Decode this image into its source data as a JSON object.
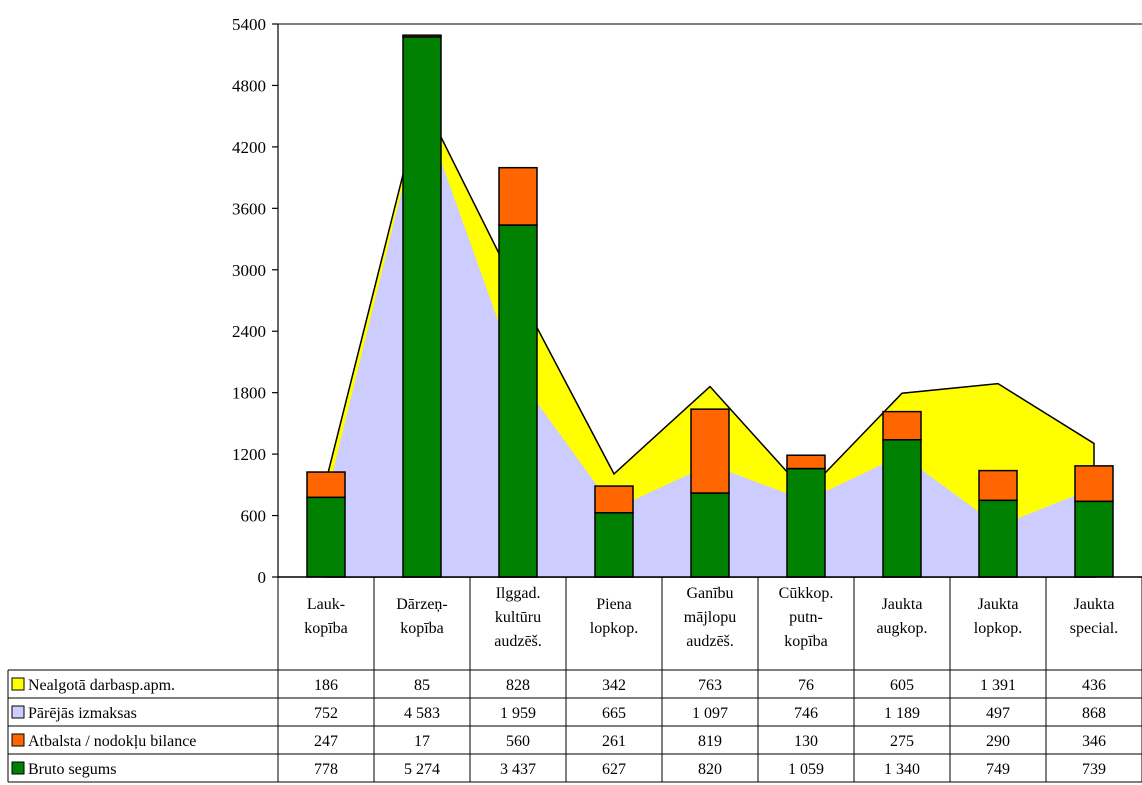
{
  "chart_data": {
    "type": "bar",
    "subtype": "stacked bar with stacked area and data table",
    "categories": [
      [
        "Lauk-",
        "kopība"
      ],
      [
        "Dārzeņ-",
        "kopība"
      ],
      [
        "Ilggad.",
        "kultūru",
        "audzēš."
      ],
      [
        "Piena",
        "lopkop."
      ],
      [
        "Ganību",
        "mājlopu",
        "audzēš."
      ],
      [
        "Cūkkop.",
        "putn-",
        "kopība"
      ],
      [
        "Jaukta",
        "augkop."
      ],
      [
        "Jaukta",
        "lopkop."
      ],
      [
        "Jaukta",
        "special."
      ]
    ],
    "ylim": [
      0,
      5400
    ],
    "yticks": [
      0,
      600,
      1200,
      1800,
      2400,
      3000,
      3600,
      4200,
      4800,
      5400
    ],
    "series": [
      {
        "name": "Nealgotā darbasp.apm.",
        "kind": "area",
        "color": "#ffff00",
        "values": [
          186,
          85,
          828,
          342,
          763,
          76,
          605,
          1391,
          436
        ],
        "labels": [
          "186",
          "85",
          "828",
          "342",
          "763",
          "76",
          "605",
          "1 391",
          "436"
        ]
      },
      {
        "name": "Pārējās izmaksas",
        "kind": "area",
        "color": "#ccccff",
        "values": [
          752,
          4583,
          1959,
          665,
          1097,
          746,
          1189,
          497,
          868
        ],
        "labels": [
          "752",
          "4 583",
          "1 959",
          "665",
          "1 097",
          "746",
          "1 189",
          "497",
          "868"
        ]
      },
      {
        "name": "Atbalsta / nodokļu bilance",
        "kind": "bar",
        "color": "#ff6600",
        "values": [
          247,
          17,
          560,
          261,
          819,
          130,
          275,
          290,
          346
        ],
        "labels": [
          "247",
          "17",
          "560",
          "261",
          "819",
          "130",
          "275",
          "290",
          "346"
        ]
      },
      {
        "name": "Bruto segums",
        "kind": "bar",
        "color": "#008000",
        "values": [
          778,
          5274,
          3437,
          627,
          820,
          1059,
          1340,
          749,
          739
        ],
        "labels": [
          "778",
          "5 274",
          "3 437",
          "627",
          "820",
          "1 059",
          "1 340",
          "749",
          "739"
        ]
      }
    ],
    "grid": false,
    "legend": "data-table"
  }
}
